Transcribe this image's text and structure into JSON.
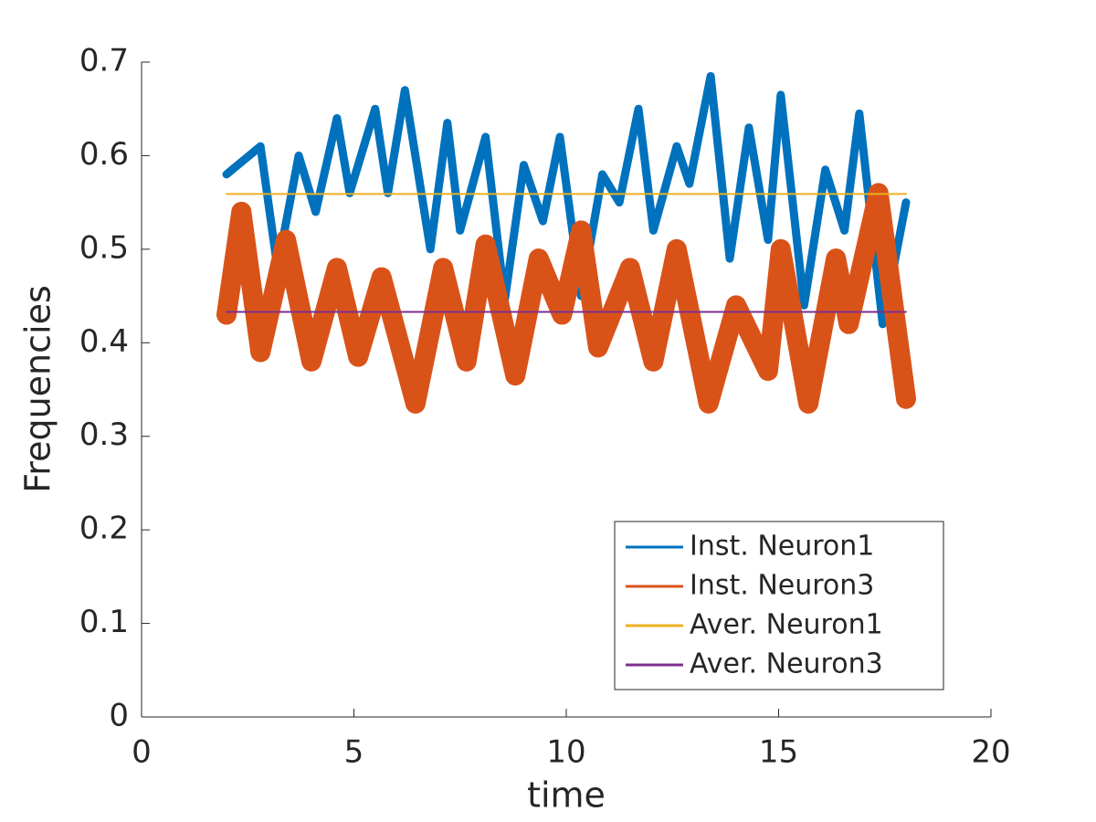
{
  "chart_data": {
    "type": "line",
    "xlabel": "time",
    "ylabel": "Frequencies",
    "xlim": [
      0,
      20
    ],
    "ylim": [
      0,
      0.7
    ],
    "xticks": [
      0,
      5,
      10,
      15,
      20
    ],
    "yticks": [
      0,
      0.1,
      0.2,
      0.3,
      0.4,
      0.5,
      0.6,
      0.7
    ],
    "grid": false,
    "legend_position": "southeast",
    "series": [
      {
        "name": "Inst. Neuron1",
        "color": "#0072bd",
        "x": [
          2,
          2.8,
          3.2,
          3.7,
          4.1,
          4.6,
          4.9,
          5.5,
          5.8,
          6.2,
          6.8,
          7.2,
          7.5,
          8.1,
          8.55,
          9.0,
          9.45,
          9.85,
          10.35,
          10.85,
          11.25,
          11.7,
          12.05,
          12.6,
          12.9,
          13.4,
          13.85,
          14.3,
          14.75,
          15.05,
          15.6,
          16.1,
          16.55,
          16.9,
          17.45,
          18
        ],
        "values": [
          0.58,
          0.61,
          0.48,
          0.6,
          0.54,
          0.64,
          0.56,
          0.65,
          0.56,
          0.67,
          0.5,
          0.635,
          0.52,
          0.62,
          0.445,
          0.59,
          0.53,
          0.62,
          0.45,
          0.58,
          0.55,
          0.65,
          0.52,
          0.61,
          0.57,
          0.685,
          0.49,
          0.63,
          0.51,
          0.665,
          0.44,
          0.585,
          0.52,
          0.645,
          0.42,
          0.55
        ]
      },
      {
        "name": "Inst. Neuron3",
        "color": "#d95319",
        "x": [
          2,
          2.35,
          2.8,
          3.4,
          4.0,
          4.6,
          5.1,
          5.65,
          6.45,
          7.1,
          7.65,
          8.1,
          8.8,
          9.35,
          9.9,
          10.35,
          10.75,
          11.5,
          12.05,
          12.6,
          13.35,
          14.0,
          14.75,
          15.05,
          15.7,
          16.35,
          16.65,
          17.35,
          18
        ],
        "values": [
          0.43,
          0.54,
          0.39,
          0.51,
          0.38,
          0.48,
          0.385,
          0.47,
          0.335,
          0.48,
          0.38,
          0.505,
          0.365,
          0.49,
          0.43,
          0.52,
          0.395,
          0.48,
          0.38,
          0.5,
          0.335,
          0.44,
          0.37,
          0.5,
          0.335,
          0.49,
          0.42,
          0.56,
          0.34
        ]
      },
      {
        "name": "Aver. Neuron1",
        "color": "#edb120",
        "x": [
          2,
          18
        ],
        "values": [
          0.559,
          0.559
        ]
      },
      {
        "name": "Aver. Neuron3",
        "color": "#7e2f8e",
        "x": [
          2,
          18
        ],
        "values": [
          0.433,
          0.433
        ]
      }
    ]
  }
}
